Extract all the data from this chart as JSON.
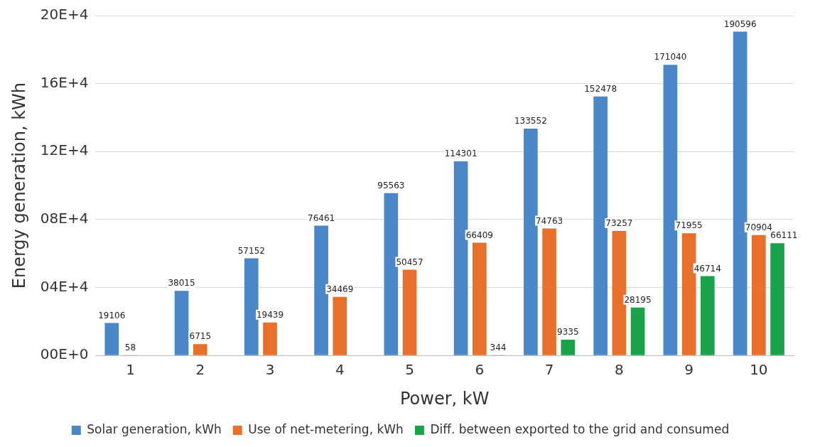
{
  "chart_data": {
    "type": "bar",
    "xlabel": "Power, kW",
    "ylabel": "Energy generation, kWh",
    "categories": [
      "1",
      "2",
      "3",
      "4",
      "5",
      "6",
      "7",
      "8",
      "9",
      "10"
    ],
    "series": [
      {
        "name": "Solar generation, kWh",
        "color": "#4a86c8",
        "values": [
          19106,
          38015,
          57152,
          76461,
          95563,
          114301,
          133552,
          152478,
          171040,
          190596
        ]
      },
      {
        "name": "Use of net-metering, kWh",
        "color": "#e8702a",
        "values": [
          58,
          6715,
          19439,
          34469,
          50457,
          66409,
          74763,
          73257,
          71955,
          70904
        ]
      },
      {
        "name": "Diff. between exported to the grid and consumed",
        "color": "#1aa34a",
        "values": [
          null,
          null,
          null,
          null,
          null,
          344,
          9335,
          28195,
          46714,
          66111
        ]
      }
    ],
    "ylim": [
      0,
      200000
    ],
    "yticks": [
      {
        "value": 0,
        "label": "00E+0"
      },
      {
        "value": 40000,
        "label": "04E+4"
      },
      {
        "value": 80000,
        "label": "08E+4"
      },
      {
        "value": 120000,
        "label": "12E+4"
      },
      {
        "value": 160000,
        "label": "16E+4"
      },
      {
        "value": 200000,
        "label": "20E+4"
      }
    ],
    "grid": "y",
    "legend": "bottom",
    "data_labels": true
  }
}
